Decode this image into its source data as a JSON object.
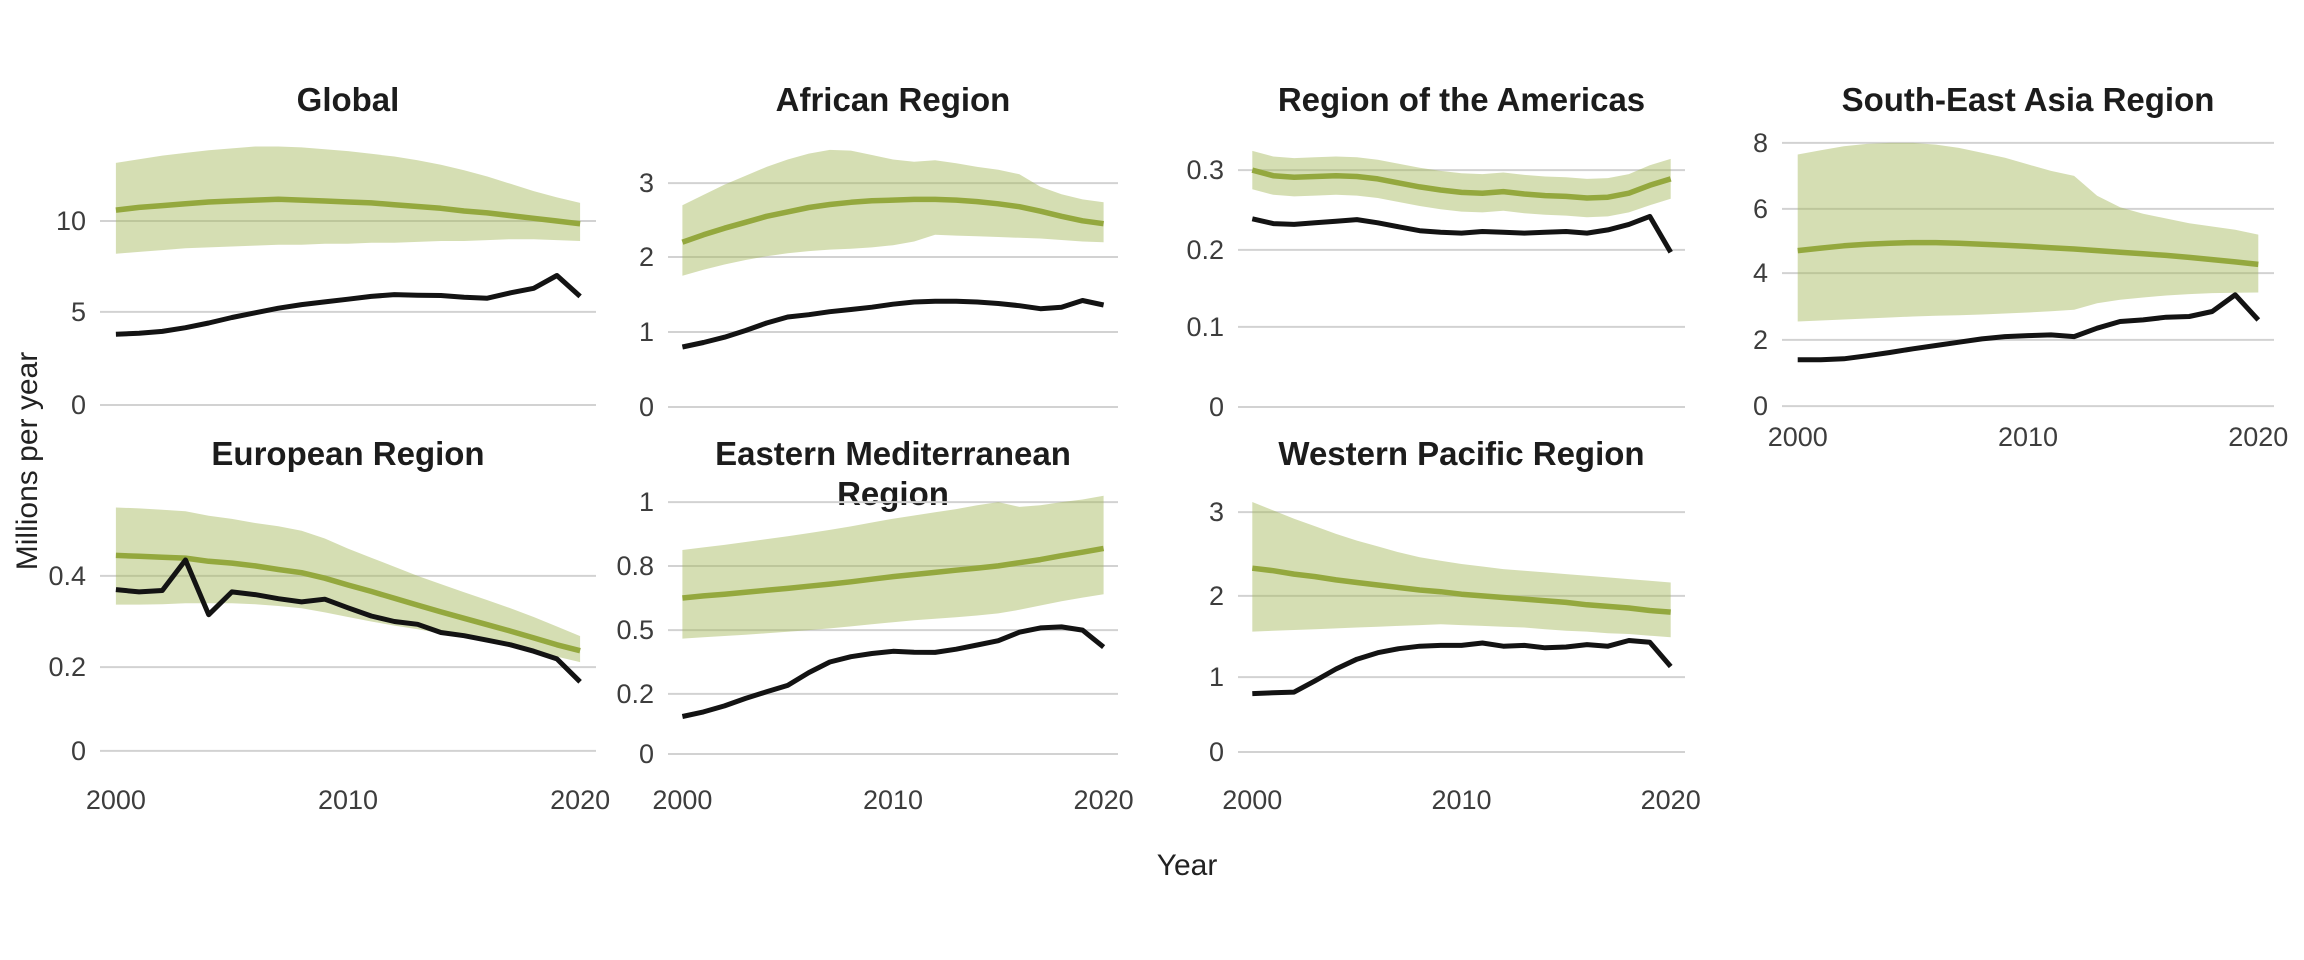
{
  "figure": {
    "ylabel": "Millions per year",
    "xlabel": "Year"
  },
  "colors": {
    "estimate_line": "#94a83e",
    "ribbon_fill": "#a7bb61",
    "ribbon_opacity": 0.48,
    "notified_line": "#131313",
    "gridline": "#d2d2d2",
    "tick_text": "#3d3d3d",
    "title_text": "#1c1c1c",
    "background": "#ffffff"
  },
  "chart_data": [
    {
      "type": "line",
      "title": "Global",
      "x": {
        "start": 2000,
        "end": 2020,
        "step": 1
      },
      "show_x_labels": false,
      "xticks": [],
      "yticks": [
        {
          "label": "0",
          "v": 0,
          "f": 0.046
        },
        {
          "label": "5",
          "v": 5,
          "f": 0.375
        },
        {
          "label": "10",
          "v": 10,
          "f": 0.696
        }
      ],
      "series": [
        {
          "name": "estimated_incidence",
          "role": "estimate",
          "values": [
            10.6,
            10.75,
            10.85,
            10.95,
            11.05,
            11.1,
            11.15,
            11.2,
            11.15,
            11.1,
            11.05,
            11.0,
            10.9,
            10.8,
            10.7,
            10.55,
            10.45,
            10.3,
            10.15,
            10.0,
            9.85
          ]
        },
        {
          "name": "incidence_ci_upper",
          "role": "upper",
          "values": [
            13.2,
            13.4,
            13.6,
            13.75,
            13.9,
            14.0,
            14.1,
            14.1,
            14.05,
            13.95,
            13.85,
            13.7,
            13.55,
            13.35,
            13.1,
            12.8,
            12.45,
            12.05,
            11.65,
            11.3,
            11.0
          ]
        },
        {
          "name": "incidence_ci_lower",
          "role": "lower",
          "values": [
            8.2,
            8.3,
            8.4,
            8.5,
            8.55,
            8.6,
            8.65,
            8.7,
            8.7,
            8.75,
            8.75,
            8.8,
            8.8,
            8.85,
            8.9,
            8.9,
            8.95,
            9.0,
            9.0,
            8.95,
            8.9
          ]
        },
        {
          "name": "notified_cases",
          "role": "notified",
          "values": [
            3.8,
            3.85,
            3.95,
            4.15,
            4.4,
            4.7,
            4.95,
            5.2,
            5.4,
            5.55,
            5.7,
            5.85,
            5.95,
            5.92,
            5.9,
            5.8,
            5.75,
            6.05,
            6.3,
            7.0,
            5.85
          ]
        }
      ]
    },
    {
      "type": "line",
      "title": "African Region",
      "x": {
        "start": 2000,
        "end": 2020,
        "step": 1
      },
      "show_x_labels": false,
      "xticks": [],
      "yticks": [
        {
          "label": "0",
          "v": 0,
          "f": 0.039
        },
        {
          "label": "1",
          "v": 1,
          "f": 0.304
        },
        {
          "label": "2",
          "v": 2,
          "f": 0.569
        },
        {
          "label": "3",
          "v": 3,
          "f": 0.83
        }
      ],
      "series": [
        {
          "name": "estimated_incidence",
          "role": "estimate",
          "values": [
            2.2,
            2.3,
            2.39,
            2.47,
            2.55,
            2.61,
            2.67,
            2.71,
            2.74,
            2.76,
            2.77,
            2.78,
            2.78,
            2.77,
            2.75,
            2.72,
            2.68,
            2.62,
            2.55,
            2.49,
            2.45
          ]
        },
        {
          "name": "incidence_ci_upper",
          "role": "upper",
          "values": [
            2.7,
            2.84,
            2.98,
            3.1,
            3.22,
            3.32,
            3.4,
            3.45,
            3.44,
            3.38,
            3.32,
            3.29,
            3.31,
            3.27,
            3.22,
            3.18,
            3.12,
            2.95,
            2.85,
            2.78,
            2.74
          ]
        },
        {
          "name": "incidence_ci_lower",
          "role": "lower",
          "values": [
            1.75,
            1.83,
            1.9,
            1.96,
            2.01,
            2.05,
            2.08,
            2.1,
            2.11,
            2.13,
            2.16,
            2.21,
            2.3,
            2.29,
            2.28,
            2.27,
            2.26,
            2.25,
            2.23,
            2.21,
            2.2
          ]
        },
        {
          "name": "notified_cases",
          "role": "notified",
          "values": [
            0.8,
            0.86,
            0.93,
            1.02,
            1.12,
            1.2,
            1.23,
            1.27,
            1.3,
            1.33,
            1.37,
            1.4,
            1.41,
            1.41,
            1.4,
            1.38,
            1.35,
            1.31,
            1.33,
            1.42,
            1.36
          ]
        }
      ]
    },
    {
      "type": "line",
      "title": "Region of the Americas",
      "x": {
        "start": 2000,
        "end": 2020,
        "step": 1
      },
      "show_x_labels": false,
      "xticks": [],
      "yticks": [
        {
          "label": "0",
          "v": 0,
          "f": 0.039
        },
        {
          "label": "0.1",
          "v": 0.1,
          "f": 0.322
        },
        {
          "label": "0.2",
          "v": 0.2,
          "f": 0.594
        },
        {
          "label": "0.3",
          "v": 0.3,
          "f": 0.876
        }
      ],
      "series": [
        {
          "name": "estimated_incidence",
          "role": "estimate",
          "values": [
            0.3,
            0.293,
            0.291,
            0.292,
            0.293,
            0.292,
            0.289,
            0.284,
            0.279,
            0.275,
            0.272,
            0.271,
            0.273,
            0.27,
            0.268,
            0.267,
            0.265,
            0.266,
            0.271,
            0.281,
            0.289
          ]
        },
        {
          "name": "incidence_ci_upper",
          "role": "upper",
          "values": [
            0.324,
            0.317,
            0.315,
            0.316,
            0.317,
            0.316,
            0.313,
            0.308,
            0.303,
            0.299,
            0.296,
            0.295,
            0.297,
            0.294,
            0.292,
            0.291,
            0.289,
            0.29,
            0.295,
            0.306,
            0.314
          ]
        },
        {
          "name": "incidence_ci_lower",
          "role": "lower",
          "values": [
            0.276,
            0.269,
            0.267,
            0.268,
            0.269,
            0.268,
            0.265,
            0.26,
            0.255,
            0.251,
            0.248,
            0.247,
            0.249,
            0.246,
            0.244,
            0.243,
            0.241,
            0.242,
            0.247,
            0.256,
            0.264
          ]
        },
        {
          "name": "notified_cases",
          "role": "notified",
          "values": [
            0.239,
            0.233,
            0.232,
            0.234,
            0.236,
            0.238,
            0.234,
            0.229,
            0.224,
            0.222,
            0.221,
            0.223,
            0.222,
            0.221,
            0.222,
            0.223,
            0.221,
            0.225,
            0.232,
            0.242,
            0.197
          ]
        }
      ]
    },
    {
      "type": "line",
      "title": "South-East Asia Region",
      "x": {
        "start": 2000,
        "end": 2020,
        "step": 1
      },
      "show_x_labels": true,
      "xticks": [
        {
          "label": "2000",
          "year": 2000
        },
        {
          "label": "2010",
          "year": 2010
        },
        {
          "label": "2020",
          "year": 2020
        }
      ],
      "yticks": [
        {
          "label": "0",
          "v": 0,
          "f": 0.042
        },
        {
          "label": "2",
          "v": 2,
          "f": 0.276
        },
        {
          "label": "4",
          "v": 4,
          "f": 0.512
        },
        {
          "label": "6",
          "v": 6,
          "f": 0.739
        },
        {
          "label": "8",
          "v": 8,
          "f": 0.972
        }
      ],
      "series": [
        {
          "name": "estimated_incidence",
          "role": "estimate",
          "values": [
            4.7,
            4.78,
            4.85,
            4.9,
            4.93,
            4.95,
            4.95,
            4.93,
            4.9,
            4.87,
            4.83,
            4.79,
            4.75,
            4.7,
            4.65,
            4.6,
            4.55,
            4.49,
            4.42,
            4.35,
            4.27
          ]
        },
        {
          "name": "incidence_ci_upper",
          "role": "upper",
          "values": [
            7.65,
            7.78,
            7.9,
            7.97,
            8.0,
            8.0,
            7.95,
            7.85,
            7.7,
            7.55,
            7.35,
            7.15,
            7.0,
            6.4,
            6.05,
            5.85,
            5.7,
            5.55,
            5.45,
            5.35,
            5.2
          ]
        },
        {
          "name": "incidence_ci_lower",
          "role": "lower",
          "values": [
            2.55,
            2.58,
            2.61,
            2.64,
            2.67,
            2.7,
            2.72,
            2.74,
            2.76,
            2.79,
            2.82,
            2.86,
            2.9,
            3.1,
            3.2,
            3.27,
            3.33,
            3.37,
            3.4,
            3.41,
            3.42
          ]
        },
        {
          "name": "notified_cases",
          "role": "notified",
          "values": [
            1.4,
            1.4,
            1.43,
            1.52,
            1.62,
            1.73,
            1.83,
            1.93,
            2.03,
            2.1,
            2.13,
            2.15,
            2.1,
            2.35,
            2.55,
            2.6,
            2.68,
            2.7,
            2.85,
            3.35,
            2.6
          ]
        }
      ]
    },
    {
      "type": "line",
      "title": "European Region",
      "x": {
        "start": 2000,
        "end": 2020,
        "step": 1
      },
      "show_x_labels": true,
      "xticks": [
        {
          "label": "2000",
          "year": 2000
        },
        {
          "label": "2010",
          "year": 2010
        },
        {
          "label": "2020",
          "year": 2020
        }
      ],
      "yticks": [
        {
          "label": "0",
          "v": 0,
          "f": 0.067
        },
        {
          "label": "0.2",
          "v": 0.2,
          "f": 0.361
        },
        {
          "label": "0.4",
          "v": 0.4,
          "f": 0.681
        }
      ],
      "series": [
        {
          "name": "estimated_incidence",
          "role": "estimate",
          "values": [
            0.445,
            0.443,
            0.441,
            0.439,
            0.432,
            0.428,
            0.422,
            0.414,
            0.407,
            0.395,
            0.38,
            0.366,
            0.351,
            0.336,
            0.321,
            0.307,
            0.293,
            0.279,
            0.264,
            0.249,
            0.236
          ]
        },
        {
          "name": "incidence_ci_upper",
          "role": "upper",
          "values": [
            0.55,
            0.548,
            0.545,
            0.542,
            0.532,
            0.525,
            0.516,
            0.509,
            0.499,
            0.482,
            0.46,
            0.44,
            0.42,
            0.4,
            0.382,
            0.364,
            0.347,
            0.329,
            0.31,
            0.289,
            0.268
          ]
        },
        {
          "name": "incidence_ci_lower",
          "role": "lower",
          "values": [
            0.337,
            0.337,
            0.338,
            0.34,
            0.34,
            0.34,
            0.338,
            0.334,
            0.329,
            0.32,
            0.31,
            0.3,
            0.291,
            0.283,
            0.274,
            0.266,
            0.257,
            0.247,
            0.236,
            0.223,
            0.211
          ]
        },
        {
          "name": "notified_cases",
          "role": "notified",
          "values": [
            0.37,
            0.365,
            0.368,
            0.435,
            0.315,
            0.365,
            0.359,
            0.35,
            0.343,
            0.349,
            0.33,
            0.312,
            0.3,
            0.294,
            0.276,
            0.269,
            0.259,
            0.249,
            0.235,
            0.218,
            0.165
          ]
        }
      ]
    },
    {
      "type": "line",
      "title": "Eastern Mediterranean Region",
      "x": {
        "start": 2000,
        "end": 2020,
        "step": 1
      },
      "show_x_labels": true,
      "xticks": [
        {
          "label": "2000",
          "year": 2000
        },
        {
          "label": "2010",
          "year": 2010
        },
        {
          "label": "2020",
          "year": 2020
        }
      ],
      "yticks": [
        {
          "label": "0",
          "v": 0,
          "f": 0.056
        },
        {
          "label": "0.2",
          "v": 0.2,
          "f": 0.267
        },
        {
          "label": "0.5",
          "v": 0.5,
          "f": 0.491
        },
        {
          "label": "0.8",
          "v": 0.8,
          "f": 0.716
        },
        {
          "label": "1",
          "v": 1,
          "f": 0.94
        }
      ],
      "series": [
        {
          "name": "estimated_incidence",
          "role": "estimate",
          "values": [
            0.65,
            0.66,
            0.668,
            0.677,
            0.686,
            0.695,
            0.705,
            0.715,
            0.726,
            0.738,
            0.75,
            0.76,
            0.77,
            0.78,
            0.79,
            0.8,
            0.81,
            0.82,
            0.832,
            0.843,
            0.855
          ]
        },
        {
          "name": "incidence_ci_upper",
          "role": "upper",
          "values": [
            0.85,
            0.858,
            0.866,
            0.875,
            0.884,
            0.893,
            0.903,
            0.913,
            0.924,
            0.936,
            0.948,
            0.958,
            0.968,
            0.978,
            0.99,
            1.0,
            0.985,
            0.99,
            1.0,
            1.008,
            1.02
          ]
        },
        {
          "name": "incidence_ci_lower",
          "role": "lower",
          "values": [
            0.46,
            0.466,
            0.472,
            0.478,
            0.485,
            0.492,
            0.5,
            0.508,
            0.517,
            0.527,
            0.537,
            0.546,
            0.553,
            0.56,
            0.568,
            0.578,
            0.595,
            0.615,
            0.635,
            0.652,
            0.668
          ]
        },
        {
          "name": "notified_cases",
          "role": "notified",
          "values": [
            0.125,
            0.14,
            0.16,
            0.185,
            0.21,
            0.24,
            0.3,
            0.35,
            0.375,
            0.39,
            0.4,
            0.396,
            0.395,
            0.41,
            0.43,
            0.45,
            0.49,
            0.51,
            0.515,
            0.5,
            0.42
          ]
        }
      ]
    },
    {
      "type": "line",
      "title": "Western Pacific Region",
      "x": {
        "start": 2000,
        "end": 2020,
        "step": 1
      },
      "show_x_labels": true,
      "xticks": [
        {
          "label": "2000",
          "year": 2000
        },
        {
          "label": "2010",
          "year": 2010
        },
        {
          "label": "2020",
          "year": 2020
        }
      ],
      "yticks": [
        {
          "label": "0",
          "v": 0,
          "f": 0.063
        },
        {
          "label": "1",
          "v": 1,
          "f": 0.326
        },
        {
          "label": "2",
          "v": 2,
          "f": 0.611
        },
        {
          "label": "3",
          "v": 3,
          "f": 0.905
        }
      ],
      "series": [
        {
          "name": "estimated_incidence",
          "role": "estimate",
          "values": [
            2.33,
            2.3,
            2.26,
            2.23,
            2.19,
            2.16,
            2.13,
            2.1,
            2.07,
            2.05,
            2.02,
            2.0,
            1.98,
            1.96,
            1.94,
            1.92,
            1.89,
            1.87,
            1.85,
            1.82,
            1.8
          ]
        },
        {
          "name": "incidence_ci_upper",
          "role": "upper",
          "values": [
            3.12,
            3.02,
            2.92,
            2.83,
            2.74,
            2.66,
            2.59,
            2.52,
            2.46,
            2.42,
            2.38,
            2.35,
            2.32,
            2.3,
            2.28,
            2.26,
            2.24,
            2.22,
            2.2,
            2.18,
            2.16
          ]
        },
        {
          "name": "incidence_ci_lower",
          "role": "lower",
          "values": [
            1.56,
            1.57,
            1.58,
            1.59,
            1.6,
            1.61,
            1.62,
            1.63,
            1.64,
            1.65,
            1.64,
            1.63,
            1.62,
            1.61,
            1.59,
            1.57,
            1.56,
            1.54,
            1.53,
            1.51,
            1.49
          ]
        },
        {
          "name": "notified_cases",
          "role": "notified",
          "values": [
            0.78,
            0.79,
            0.8,
            0.95,
            1.1,
            1.22,
            1.3,
            1.35,
            1.38,
            1.39,
            1.39,
            1.42,
            1.38,
            1.39,
            1.36,
            1.37,
            1.4,
            1.38,
            1.45,
            1.43,
            1.13
          ]
        }
      ]
    }
  ]
}
